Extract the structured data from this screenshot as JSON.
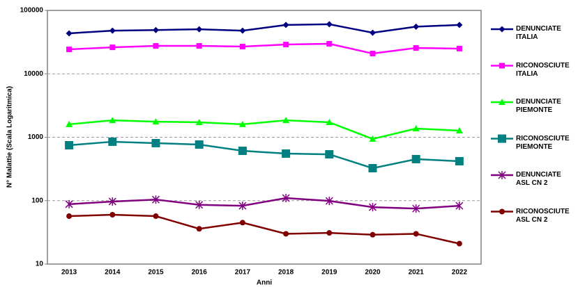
{
  "chart_data": {
    "type": "line",
    "x_label": "Anni",
    "y_label": "N° Malattie (Scala Logaritmica)",
    "categories": [
      "2013",
      "2014",
      "2015",
      "2016",
      "2017",
      "2018",
      "2019",
      "2020",
      "2021",
      "2022"
    ],
    "log_scale": true,
    "ylim": [
      10,
      100000
    ],
    "yticks": [
      10,
      100,
      1000,
      10000,
      100000
    ],
    "grid": true,
    "legend": "right",
    "series": [
      {
        "name": "DENUNCIATE\nITALIA",
        "color": "#000080",
        "marker": "diamond",
        "values": [
          43500,
          48000,
          49000,
          50500,
          48000,
          59000,
          60500,
          44500,
          55500,
          59000
        ]
      },
      {
        "name": "RICONOSCIUTE\nITALIA",
        "color": "#ff00ff",
        "marker": "square",
        "values": [
          24300,
          26200,
          27600,
          27600,
          26900,
          29000,
          29800,
          20900,
          25600,
          25000
        ]
      },
      {
        "name": "DENUNCIATE\nPIEMONTE",
        "color": "#00ff00",
        "marker": "triangle",
        "values": [
          1600,
          1850,
          1760,
          1720,
          1600,
          1850,
          1720,
          940,
          1370,
          1270
        ]
      },
      {
        "name": "RICONOSCIUTE\nPIEMONTE",
        "color": "#008080",
        "marker": "bigsquare",
        "values": [
          748,
          850,
          808,
          767,
          611,
          552,
          538,
          325,
          452,
          419
        ]
      },
      {
        "name": "DENUNCIATE\nASL CN 2",
        "color": "#800080",
        "marker": "star",
        "values": [
          88,
          97,
          104,
          86,
          83,
          110,
          99,
          79,
          75,
          83
        ]
      },
      {
        "name": "RICONOSCIUTE\nASL CN 2",
        "color": "#800000",
        "marker": "circle",
        "values": [
          57,
          60,
          57,
          36,
          45,
          30,
          31,
          29,
          30,
          21
        ]
      }
    ]
  }
}
